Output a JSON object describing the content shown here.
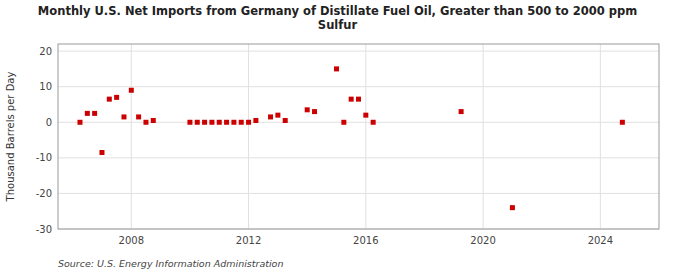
{
  "chart_data": {
    "type": "scatter",
    "title": "Monthly U.S. Net Imports from Germany of Distillate Fuel Oil, Greater than 500 to 2000 ppm\nSulfur",
    "y_label": "Thousand Barrels per Day",
    "annotations": [
      "Source: U.S. Energy Information Administration"
    ],
    "color": "#cc0000",
    "marker": "square",
    "grid": true,
    "xlim": [
      2005.5,
      2026.0
    ],
    "ylim": [
      -30,
      22
    ],
    "xticks": [
      2008,
      2012,
      2016,
      2020,
      2024
    ],
    "yticks": [
      -30,
      -20,
      -10,
      0,
      10,
      20
    ],
    "x": [
      2006.25,
      2006.5,
      2006.75,
      2007.0,
      2007.25,
      2007.5,
      2007.75,
      2008.0,
      2008.25,
      2008.5,
      2008.75,
      2010.0,
      2010.25,
      2010.5,
      2010.75,
      2011.0,
      2011.25,
      2011.5,
      2011.75,
      2012.0,
      2012.25,
      2012.75,
      2013.0,
      2013.25,
      2014.0,
      2014.25,
      2015.0,
      2015.25,
      2015.5,
      2015.75,
      2016.0,
      2016.25,
      2019.25,
      2021.0,
      2024.75
    ],
    "values": [
      0.0,
      2.5,
      2.5,
      -8.5,
      6.5,
      7.0,
      1.5,
      9.0,
      1.5,
      0.0,
      0.5,
      0.0,
      0.0,
      0.0,
      0.0,
      0.0,
      0.0,
      0.0,
      0.0,
      0.0,
      0.5,
      1.5,
      2.0,
      0.5,
      3.5,
      3.0,
      15.0,
      0.0,
      6.5,
      6.5,
      2.0,
      0.0,
      3.0,
      -24.0,
      0.0
    ]
  }
}
